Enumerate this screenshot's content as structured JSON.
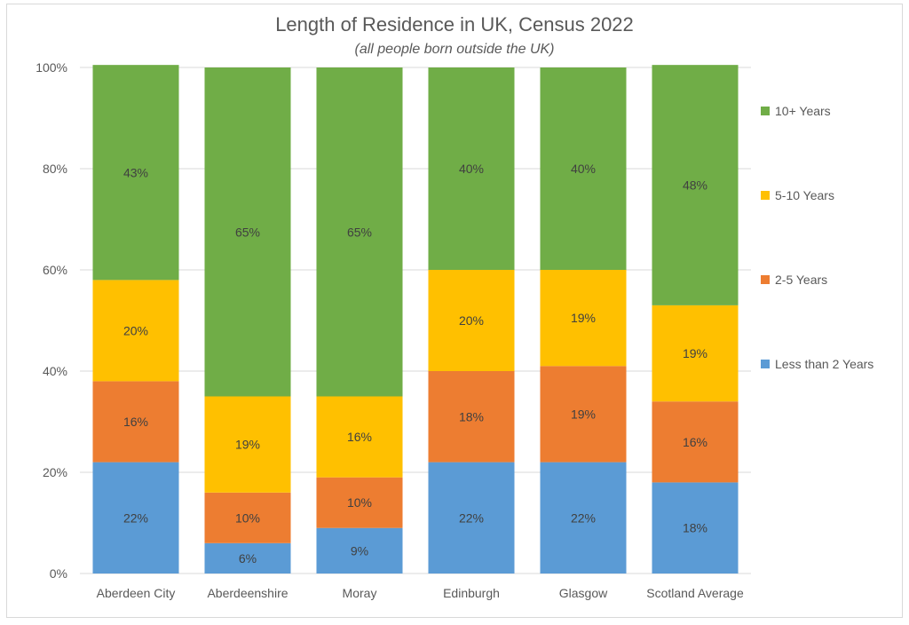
{
  "chart_data": {
    "type": "bar",
    "stacked": true,
    "title": "Length of Residence in UK, Census 2022",
    "subtitle": "(all people born outside the UK)",
    "xlabel": "",
    "ylabel": "",
    "ylim": [
      0,
      100
    ],
    "yticks": [
      0,
      20,
      40,
      60,
      80,
      100
    ],
    "ytick_labels": [
      "0%",
      "20%",
      "40%",
      "60%",
      "80%",
      "100%"
    ],
    "grid": true,
    "legend_position": "right",
    "categories": [
      "Aberdeen City",
      "Aberdeenshire",
      "Moray",
      "Edinburgh",
      "Glasgow",
      "Scotland Average"
    ],
    "series": [
      {
        "name": "Less than 2 Years",
        "color": "#5b9bd5",
        "values": [
          22,
          6,
          9,
          22,
          22,
          18
        ],
        "labels": [
          "22%",
          "6%",
          "9%",
          "22%",
          "22%",
          "18%"
        ]
      },
      {
        "name": "2-5 Years",
        "color": "#ed7d31",
        "values": [
          16,
          10,
          10,
          18,
          19,
          16
        ],
        "labels": [
          "16%",
          "10%",
          "10%",
          "18%",
          "19%",
          "16%"
        ]
      },
      {
        "name": "5-10 Years",
        "color": "#ffc000",
        "values": [
          20,
          19,
          16,
          20,
          19,
          19
        ],
        "labels": [
          "20%",
          "19%",
          "16%",
          "20%",
          "19%",
          "19%"
        ]
      },
      {
        "name": "10+ Years",
        "color": "#70ad47",
        "values": [
          42.5,
          65,
          65,
          40,
          40,
          47.5
        ],
        "labels": [
          "43%",
          "65%",
          "65%",
          "40%",
          "40%",
          "48%"
        ]
      }
    ]
  }
}
